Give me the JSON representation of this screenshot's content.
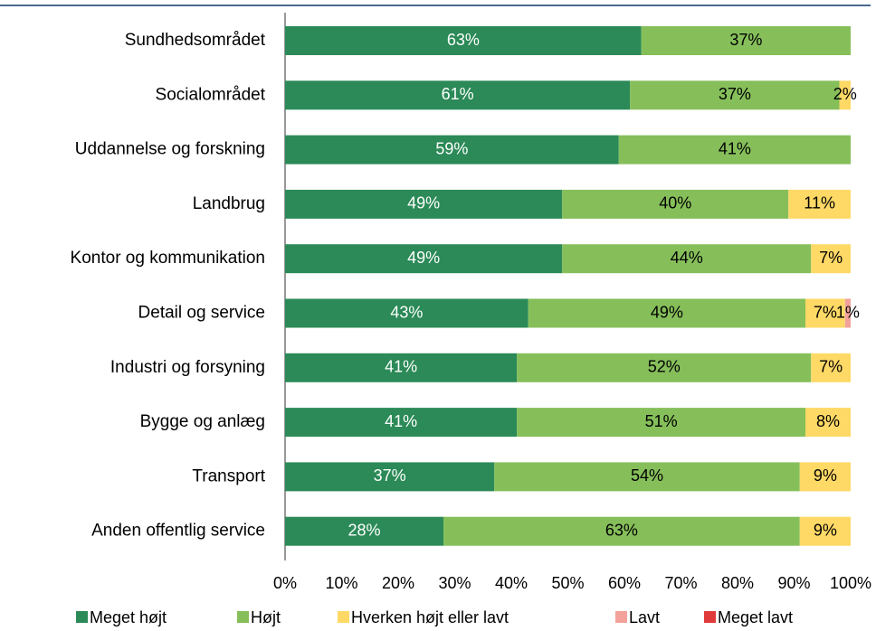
{
  "chart_data": {
    "type": "stacked-barh",
    "categories": [
      "Sundhedsområdet",
      "Socialområdet",
      "Uddannelse og forskning",
      "Landbrug",
      "Kontor og kommunikation",
      "Detail og service",
      "Industri og forsyning",
      "Bygge og anlæg",
      "Transport",
      "Anden offentlig service"
    ],
    "series": [
      {
        "name": "Meget højt",
        "color": "#2b8a57",
        "label_color": "#ffffff",
        "values": [
          63,
          61,
          59,
          49,
          49,
          43,
          41,
          41,
          37,
          28
        ],
        "value_labels": [
          "63%",
          "61%",
          "59%",
          "49%",
          "49%",
          "43%",
          "41%",
          "41%",
          "37%",
          "28%"
        ]
      },
      {
        "name": "Højt",
        "color": "#86bf5a",
        "label_color": "#000000",
        "values": [
          37,
          37,
          41,
          40,
          44,
          49,
          52,
          51,
          54,
          63
        ],
        "value_labels": [
          "37%",
          "37%",
          "41%",
          "40%",
          "44%",
          "49%",
          "52%",
          "51%",
          "54%",
          "63%"
        ]
      },
      {
        "name": "Hverken højt eller lavt",
        "color": "#ffd966",
        "label_color": "#000000",
        "values": [
          null,
          2,
          null,
          11,
          7,
          7,
          7,
          8,
          9,
          9
        ],
        "value_labels": [
          null,
          "2%",
          null,
          "11%",
          "7%",
          "7%",
          "7%",
          "8%",
          "9%",
          "9%"
        ]
      },
      {
        "name": "Lavt",
        "color": "#f2a29b",
        "label_color": "#000000",
        "values": [
          null,
          null,
          null,
          null,
          null,
          1,
          null,
          null,
          null,
          null
        ],
        "value_labels": [
          null,
          null,
          null,
          null,
          null,
          "1%",
          null,
          null,
          null,
          null
        ]
      },
      {
        "name": "Meget lavt",
        "color": "#e03a3a",
        "label_color": "#000000",
        "values": [
          null,
          null,
          null,
          null,
          null,
          null,
          null,
          null,
          null,
          null
        ],
        "value_labels": [
          null,
          null,
          null,
          null,
          null,
          null,
          null,
          null,
          null,
          null
        ]
      }
    ],
    "xlim": [
      0,
      100
    ],
    "xticks": [
      {
        "value": 0,
        "label": "0%"
      },
      {
        "value": 10,
        "label": "10%"
      },
      {
        "value": 20,
        "label": "20%"
      },
      {
        "value": 30,
        "label": "30%"
      },
      {
        "value": 40,
        "label": "40%"
      },
      {
        "value": 50,
        "label": "50%"
      },
      {
        "value": 60,
        "label": "60%"
      },
      {
        "value": 70,
        "label": "70%"
      },
      {
        "value": 80,
        "label": "80%"
      },
      {
        "value": 90,
        "label": "90%"
      },
      {
        "value": 100,
        "label": "100%"
      }
    ],
    "legend": "bottom"
  }
}
